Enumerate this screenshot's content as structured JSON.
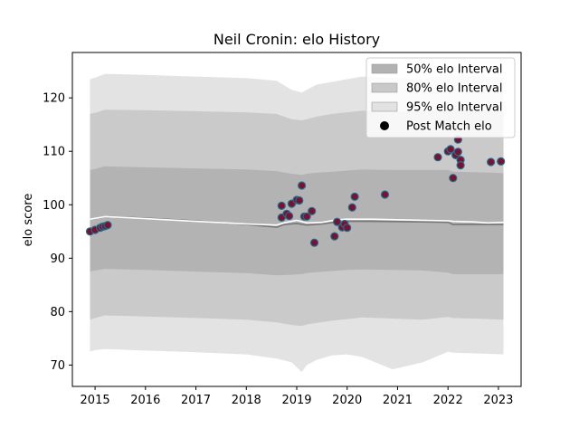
{
  "chart_data": {
    "type": "scatter",
    "title": "Neil Cronin: elo History",
    "xlabel": "",
    "ylabel": "elo score",
    "xlim": [
      2014.55,
      2023.45
    ],
    "ylim": [
      66,
      128.5
    ],
    "x_ticks": [
      2015,
      2016,
      2017,
      2018,
      2019,
      2020,
      2021,
      2022,
      2023
    ],
    "y_ticks": [
      70,
      80,
      90,
      100,
      110,
      120
    ],
    "grid": false,
    "legend_position": "top-right",
    "legend": [
      {
        "label": "50% elo Interval",
        "kind": "band",
        "color": "#b2b2b2"
      },
      {
        "label": "80% elo Interval",
        "kind": "band",
        "color": "#c8c8c8"
      },
      {
        "label": "95% elo Interval",
        "kind": "band",
        "color": "#e2e2e2"
      },
      {
        "label": "Post Match elo",
        "kind": "point",
        "color": "#000000"
      }
    ],
    "bands": {
      "x": [
        2014.9,
        2015.0,
        2015.2,
        2016.0,
        2017.0,
        2018.0,
        2018.6,
        2018.9,
        2019.1,
        2019.2,
        2019.4,
        2019.7,
        2020.0,
        2020.3,
        2020.9,
        2021.5,
        2022.0,
        2022.1,
        2022.5,
        2022.8,
        2023.1
      ],
      "i95_hi": [
        123.5,
        123.8,
        124.5,
        124.3,
        124.0,
        123.7,
        123.2,
        121.5,
        121.0,
        121.5,
        122.5,
        123.0,
        123.5,
        124.0,
        123.8,
        123.5,
        124.5,
        124.3,
        124.2,
        124.0,
        123.8
      ],
      "i80_hi": [
        117.0,
        117.2,
        117.8,
        117.7,
        117.5,
        117.3,
        117.0,
        116.0,
        115.8,
        116.0,
        116.5,
        117.0,
        117.3,
        117.6,
        117.5,
        117.4,
        118.0,
        117.8,
        117.7,
        117.6,
        117.5
      ],
      "i50_hi": [
        106.5,
        106.7,
        107.2,
        107.0,
        106.8,
        106.6,
        106.3,
        105.8,
        105.6,
        105.8,
        106.0,
        106.2,
        106.4,
        106.6,
        106.5,
        106.5,
        106.5,
        106.2,
        106.1,
        106.0,
        105.9
      ],
      "i50_lo": [
        87.5,
        87.7,
        88.0,
        87.8,
        87.5,
        87.2,
        86.8,
        86.9,
        87.0,
        87.2,
        87.4,
        87.6,
        87.8,
        87.9,
        87.8,
        87.7,
        87.3,
        87.0,
        87.0,
        87.0,
        87.0
      ],
      "i80_lo": [
        78.5,
        78.8,
        79.3,
        79.1,
        78.8,
        78.5,
        78.0,
        77.5,
        77.3,
        77.6,
        77.9,
        78.3,
        78.6,
        78.9,
        78.7,
        78.5,
        79.0,
        78.8,
        78.7,
        78.6,
        78.5
      ],
      "i95_lo": [
        72.5,
        72.8,
        73.0,
        72.7,
        72.4,
        72.0,
        71.2,
        70.5,
        68.7,
        70.0,
        71.0,
        71.8,
        72.0,
        71.5,
        69.2,
        70.5,
        72.5,
        72.3,
        72.2,
        72.1,
        72.0
      ]
    },
    "mean_line": {
      "x": [
        2014.9,
        2015.2,
        2016.0,
        2017.0,
        2018.0,
        2018.6,
        2018.75,
        2019.0,
        2019.2,
        2019.5,
        2019.8,
        2020.0,
        2020.5,
        2021.5,
        2022.0,
        2022.1,
        2022.5,
        2022.8,
        2023.1
      ],
      "values": [
        97.3,
        97.8,
        97.5,
        97.0,
        96.3,
        95.8,
        96.3,
        96.5,
        96.2,
        96.4,
        96.8,
        96.9,
        96.9,
        96.8,
        96.7,
        96.3,
        96.3,
        96.3,
        96.3
      ]
    },
    "white_line": {
      "x": [
        2014.9,
        2015.2,
        2016.0,
        2017.0,
        2018.0,
        2018.6,
        2018.75,
        2019.0,
        2019.2,
        2019.5,
        2019.8,
        2020.0,
        2020.5,
        2021.5,
        2022.0,
        2022.1,
        2022.5,
        2022.8,
        2023.1
      ],
      "values": [
        97.3,
        97.8,
        97.4,
        96.9,
        96.4,
        96.2,
        96.6,
        97.1,
        96.6,
        96.7,
        97.2,
        97.3,
        97.3,
        97.1,
        97.0,
        96.9,
        96.8,
        96.6,
        96.7
      ]
    },
    "points": {
      "x": [
        2014.9,
        2015.0,
        2015.1,
        2015.15,
        2015.2,
        2015.25,
        2018.7,
        2018.7,
        2018.8,
        2018.85,
        2018.9,
        2019.0,
        2019.05,
        2019.1,
        2019.15,
        2019.2,
        2019.3,
        2019.35,
        2019.75,
        2019.8,
        2019.9,
        2019.95,
        2020.0,
        2020.1,
        2020.15,
        2020.75,
        2021.8,
        2022.0,
        2022.05,
        2022.1,
        2022.15,
        2022.2,
        2022.2,
        2022.25,
        2022.25,
        2022.85,
        2023.05
      ],
      "values": [
        95.0,
        95.3,
        95.7,
        95.9,
        96.0,
        96.2,
        97.6,
        99.8,
        98.3,
        97.9,
        100.2,
        100.9,
        100.8,
        103.6,
        97.8,
        97.8,
        98.8,
        92.9,
        94.1,
        96.8,
        95.8,
        96.4,
        95.7,
        99.5,
        101.5,
        101.9,
        108.9,
        110.0,
        110.4,
        105.0,
        109.3,
        112.2,
        109.9,
        108.4,
        107.4,
        108.0,
        108.1
      ]
    }
  }
}
